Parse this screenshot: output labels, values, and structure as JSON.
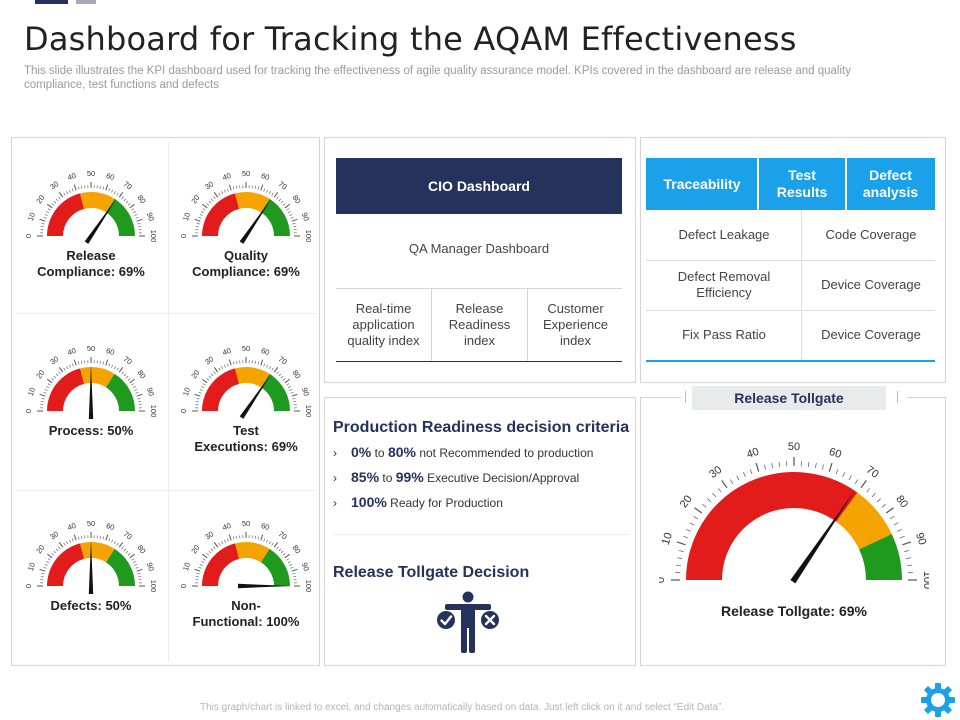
{
  "header": {
    "title": "Dashboard for Tracking the AQAM Effectiveness",
    "subtitle": "This slide illustrates the KPI dashboard used for tracking the effectiveness of agile quality assurance model. KPIs covered in the dashboard are release and quality compliance, test functions and defects"
  },
  "gauges": [
    {
      "label_line1": "Release",
      "label_line2": "Compliance: 69%",
      "value": 69
    },
    {
      "label_line1": "Quality",
      "label_line2": "Compliance: 69%",
      "value": 69
    },
    {
      "label_line1": "Process:  50%",
      "label_line2": "",
      "value": 50
    },
    {
      "label_line1": "Test",
      "label_line2": "Executions: 69%",
      "value": 69
    },
    {
      "label_line1": "Defects:  50%",
      "label_line2": "",
      "value": 50
    },
    {
      "label_line1": "Non-",
      "label_line2": "Functional: 100%",
      "value": 100
    }
  ],
  "gauge_ticks": [
    "0",
    "10",
    "20",
    "30",
    "40",
    "50",
    "60",
    "70",
    "80",
    "90",
    "100"
  ],
  "gauge_colors": {
    "red": "#e21b1b",
    "orange": "#f5a300",
    "green": "#1f9a1f",
    "needle": "#111111"
  },
  "cio": {
    "header": "CIO Dashboard",
    "qa_manager": "QA Manager Dashboard",
    "columns": [
      [
        "Real-time",
        "application",
        "quality index"
      ],
      [
        "Release",
        "Readiness",
        "index"
      ],
      [
        "Customer",
        "Experience",
        "index"
      ]
    ],
    "colors": {
      "header_bg": "#25335c"
    }
  },
  "traceability": {
    "headers": [
      [
        "Traceability"
      ],
      [
        "Test",
        "Results"
      ],
      [
        "Defect",
        "analysis"
      ]
    ],
    "rows": [
      [
        [
          "Defect Leakage"
        ],
        [
          "Code Coverage"
        ]
      ],
      [
        [
          "Defect Removal",
          "Efficiency"
        ],
        [
          "Device Coverage"
        ]
      ],
      [
        [
          "Fix Pass Ratio"
        ],
        [
          "Device Coverage"
        ]
      ]
    ],
    "colors": {
      "header_bg": "#1ba1ea"
    }
  },
  "production": {
    "title": "Production Readiness decision criteria",
    "criteria": [
      {
        "a": "0%",
        "mid": "to",
        "b": "80%",
        "text": "not Recommended to production"
      },
      {
        "a": "85%",
        "mid": "to",
        "b": "99%",
        "text": "Executive Decision/Approval"
      },
      {
        "a": "100%",
        "mid": "",
        "b": "",
        "text": "Ready for Production"
      }
    ],
    "decision_title": "Release Tollgate Decision",
    "icon": "person-check-cross-icon"
  },
  "tollgate": {
    "header": "Release Tollgate",
    "label": "Release Tollgate: 69%",
    "value": 69
  },
  "footer": {
    "note": "This graph/chart is linked to excel, and changes automatically based on data. Just left click on it and select “Edit Data”."
  },
  "icons": {
    "settings": "gear-icon"
  }
}
